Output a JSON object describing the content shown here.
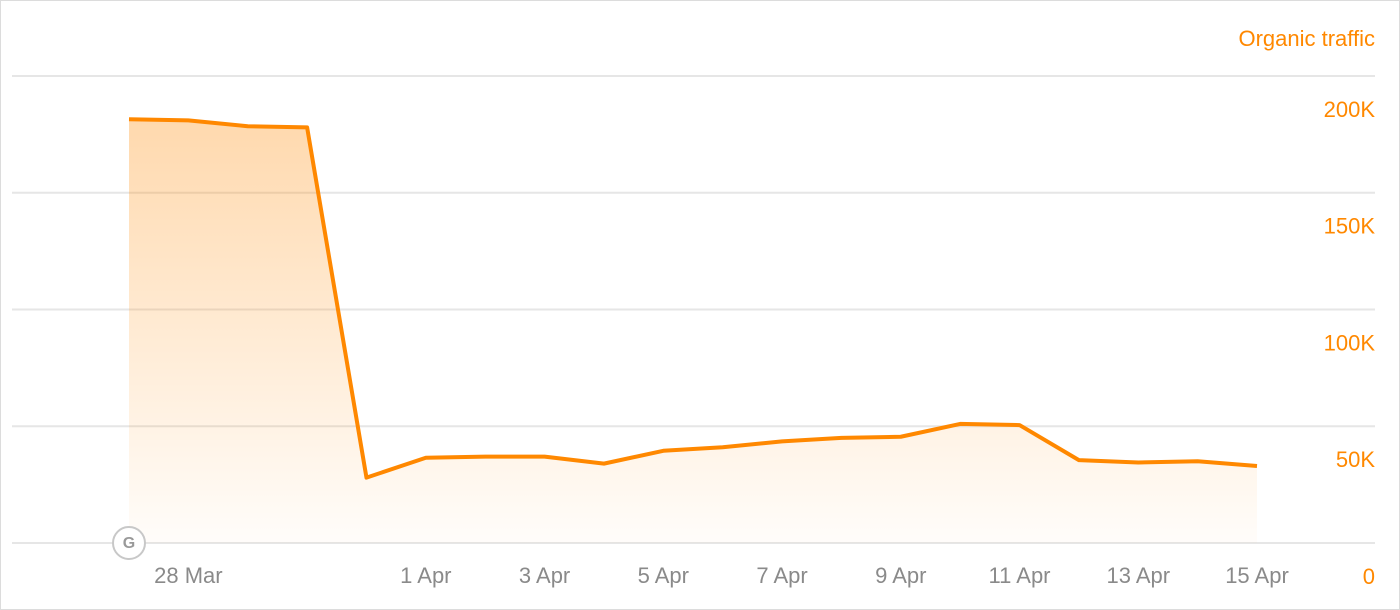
{
  "chart_data": {
    "type": "area",
    "categories": [
      null,
      "28 Mar",
      null,
      null,
      null,
      "1 Apr",
      null,
      "3 Apr",
      null,
      "5 Apr",
      null,
      "7 Apr",
      null,
      "9 Apr",
      null,
      "11 Apr",
      null,
      "13 Apr",
      null,
      "15 Apr"
    ],
    "series": [
      {
        "name": "Organic traffic",
        "color": "#ff8800",
        "values": [
          181500,
          181000,
          178500,
          178000,
          28000,
          36500,
          37000,
          37000,
          34000,
          39500,
          41000,
          43500,
          45000,
          45500,
          51000,
          50500,
          35500,
          34500,
          35000,
          33000
        ]
      }
    ],
    "ylim": [
      0,
      200000
    ],
    "yticks": [
      0,
      {
        "value": 50000,
        "label": "50K"
      },
      {
        "value": 100000,
        "label": "100K"
      },
      {
        "value": 150000,
        "label": "150K"
      },
      {
        "value": 200000,
        "label": "200K"
      }
    ],
    "grid": true,
    "annotation": "G"
  }
}
